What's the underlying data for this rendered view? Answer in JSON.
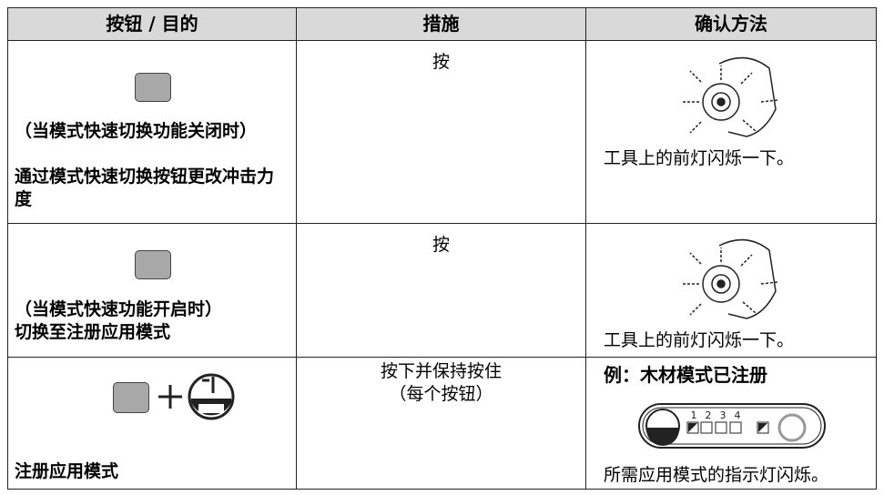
{
  "table": {
    "header": [
      "按钮 / 目的",
      "措施",
      "确认方法"
    ],
    "rows": [
      {
        "purpose": [
          "（当模式快速切换功能关闭时）",
          "通过模式快速切换按钮更改冲击力度"
        ],
        "action": [
          "按"
        ],
        "result": [
          "工具上的前灯闪烁一下。"
        ]
      },
      {
        "purpose": [
          "（当模式快速功能开启时）",
          "切换至注册应用模式"
        ],
        "action": [
          "按"
        ],
        "result": [
          "工具上的前灯闪烁一下。"
        ]
      },
      {
        "purpose": [
          "注册应用模式"
        ],
        "action": [
          "按下并保持按住",
          "（每个按钮）"
        ],
        "result_title": "例：木材模式已注册",
        "panel_digits": [
          "1",
          "2",
          "3",
          "4"
        ],
        "result": [
          "所需应用模式的指示灯闪烁。"
        ]
      }
    ]
  }
}
